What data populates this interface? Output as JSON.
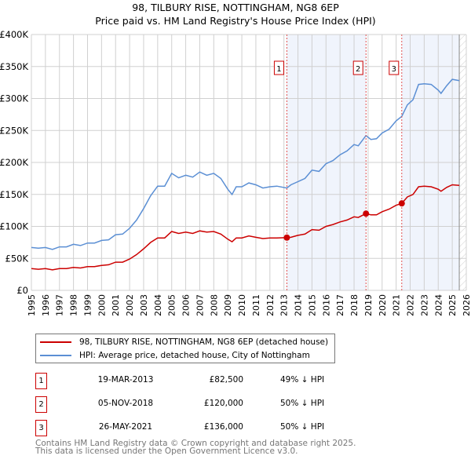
{
  "title_line1": "98, TILBURY RISE, NOTTINGHAM, NG8 6EP",
  "title_line2": "Price paid vs. HM Land Registry's House Price Index (HPI)",
  "chart_data": {
    "type": "line",
    "title": "98, TILBURY RISE, NOTTINGHAM, NG8 6EP — Price paid vs. HM Land Registry's House Price Index (HPI)",
    "xlim": [
      1995,
      2026
    ],
    "ylim": [
      0,
      400000
    ],
    "grid": true,
    "y_ticks": [
      0,
      50000,
      100000,
      150000,
      200000,
      250000,
      300000,
      350000,
      400000
    ],
    "y_tick_labels": [
      "£0",
      "£50K",
      "£100K",
      "£150K",
      "£200K",
      "£250K",
      "£300K",
      "£350K",
      "£400K"
    ],
    "x_ticks": [
      1995,
      1996,
      1997,
      1998,
      1999,
      2000,
      2001,
      2002,
      2003,
      2004,
      2005,
      2006,
      2007,
      2008,
      2009,
      2010,
      2011,
      2012,
      2013,
      2014,
      2015,
      2016,
      2017,
      2018,
      2019,
      2020,
      2021,
      2022,
      2023,
      2024,
      2025,
      2026
    ],
    "shaded_ranges": [
      [
        2013.21,
        2018.85
      ],
      [
        2021.4,
        2025.5
      ]
    ],
    "hatched_from": 2025.5,
    "x": [
      1995,
      1995.5,
      1996,
      1996.5,
      1997,
      1997.5,
      1998,
      1998.5,
      1999,
      1999.5,
      2000,
      2000.5,
      2001,
      2001.5,
      2002,
      2002.5,
      2003,
      2003.5,
      2004,
      2004.5,
      2005,
      2005.5,
      2006,
      2006.5,
      2007,
      2007.5,
      2008,
      2008.5,
      2009,
      2009.3,
      2009.6,
      2010,
      2010.5,
      2011,
      2011.5,
      2012,
      2012.5,
      2013.21,
      2013.5,
      2014,
      2014.5,
      2015,
      2015.5,
      2016,
      2016.5,
      2017,
      2017.5,
      2018,
      2018.3,
      2018.85,
      2019.2,
      2019.6,
      2020,
      2020.5,
      2021,
      2021.4,
      2021.8,
      2022.2,
      2022.6,
      2023,
      2023.5,
      2024,
      2024.2,
      2024.6,
      2025,
      2025.5
    ],
    "series": [
      {
        "name": "98, TILBURY RISE, NOTTINGHAM, NG8 6EP (detached house)",
        "color": "#cc0000",
        "values": [
          34000,
          33000,
          34000,
          32000,
          34000,
          34000,
          36000,
          35000,
          37000,
          37000,
          39000,
          40000,
          44000,
          44000,
          49000,
          56000,
          65000,
          75000,
          82000,
          82000,
          92000,
          89000,
          91000,
          89000,
          93000,
          91000,
          92000,
          88000,
          80000,
          76000,
          82000,
          82000,
          85000,
          83000,
          81000,
          82000,
          82000,
          82500,
          83000,
          86000,
          88000,
          95000,
          94000,
          100000,
          103000,
          107000,
          110000,
          115000,
          114000,
          120000,
          118000,
          118000,
          123000,
          127000,
          133000,
          136000,
          146000,
          150000,
          162000,
          163000,
          162000,
          158000,
          155000,
          161000,
          165000,
          164000
        ]
      },
      {
        "name": "HPI: Average price, detached house, City of Nottingham",
        "color": "#5b8fd4",
        "values": [
          67000,
          66000,
          67000,
          64000,
          68000,
          68000,
          72000,
          70000,
          74000,
          74000,
          78000,
          79000,
          87000,
          88000,
          97000,
          110000,
          128000,
          148000,
          163000,
          163000,
          183000,
          176000,
          180000,
          177000,
          185000,
          180000,
          183000,
          175000,
          158000,
          150000,
          162000,
          162000,
          168000,
          165000,
          160000,
          162000,
          163000,
          160000,
          165000,
          170000,
          175000,
          188000,
          186000,
          198000,
          203000,
          212000,
          218000,
          228000,
          226000,
          242000,
          236000,
          237000,
          246000,
          252000,
          265000,
          272000,
          290000,
          298000,
          322000,
          323000,
          322000,
          313000,
          308000,
          320000,
          330000,
          328000
        ]
      }
    ],
    "sales": [
      {
        "label": "1",
        "x": 2013.21,
        "price": 82500
      },
      {
        "label": "2",
        "x": 2018.85,
        "price": 120000
      },
      {
        "label": "3",
        "x": 2021.4,
        "price": 136000
      }
    ]
  },
  "legend": {
    "property": "98, TILBURY RISE, NOTTINGHAM, NG8 6EP (detached house)",
    "hpi": "HPI: Average price, detached house, City of Nottingham"
  },
  "transactions": [
    {
      "num": "1",
      "date": "19-MAR-2013",
      "price": "£82,500",
      "hpi": "49% ↓ HPI"
    },
    {
      "num": "2",
      "date": "05-NOV-2018",
      "price": "£120,000",
      "hpi": "50% ↓ HPI"
    },
    {
      "num": "3",
      "date": "26-MAY-2021",
      "price": "£136,000",
      "hpi": "50% ↓ HPI"
    }
  ],
  "footer": {
    "line1": "Contains HM Land Registry data © Crown copyright and database right 2025.",
    "line2": "This data is licensed under the Open Government Licence v3.0."
  }
}
